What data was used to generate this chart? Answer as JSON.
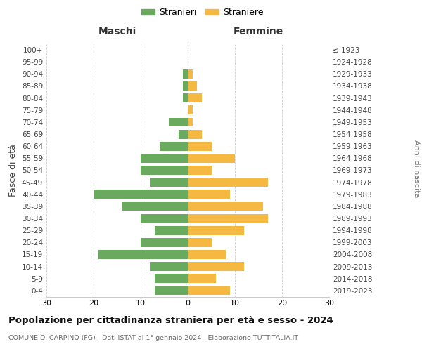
{
  "age_groups": [
    "0-4",
    "5-9",
    "10-14",
    "15-19",
    "20-24",
    "25-29",
    "30-34",
    "35-39",
    "40-44",
    "45-49",
    "50-54",
    "55-59",
    "60-64",
    "65-69",
    "70-74",
    "75-79",
    "80-84",
    "85-89",
    "90-94",
    "95-99",
    "100+"
  ],
  "birth_years": [
    "2019-2023",
    "2014-2018",
    "2009-2013",
    "2004-2008",
    "1999-2003",
    "1994-1998",
    "1989-1993",
    "1984-1988",
    "1979-1983",
    "1974-1978",
    "1969-1973",
    "1964-1968",
    "1959-1963",
    "1954-1958",
    "1949-1953",
    "1944-1948",
    "1939-1943",
    "1934-1938",
    "1929-1933",
    "1924-1928",
    "≤ 1923"
  ],
  "maschi": [
    7,
    7,
    8,
    19,
    10,
    7,
    10,
    14,
    20,
    8,
    10,
    10,
    6,
    2,
    4,
    0,
    1,
    1,
    1,
    0,
    0
  ],
  "femmine": [
    9,
    6,
    12,
    8,
    5,
    12,
    17,
    16,
    9,
    17,
    5,
    10,
    5,
    3,
    1,
    1,
    3,
    2,
    1,
    0,
    0
  ],
  "color_maschi": "#6aaa5f",
  "color_femmine": "#f5b942",
  "background_color": "#ffffff",
  "grid_color": "#cccccc",
  "title": "Popolazione per cittadinanza straniera per età e sesso - 2024",
  "subtitle": "COMUNE DI CARPINO (FG) - Dati ISTAT al 1° gennaio 2024 - Elaborazione TUTTITALIA.IT",
  "ylabel_left": "Fasce di età",
  "ylabel_right": "Anni di nascita",
  "label_maschi": "Stranieri",
  "label_femmine": "Straniere",
  "header_left": "Maschi",
  "header_right": "Femmine",
  "xlim": 30
}
